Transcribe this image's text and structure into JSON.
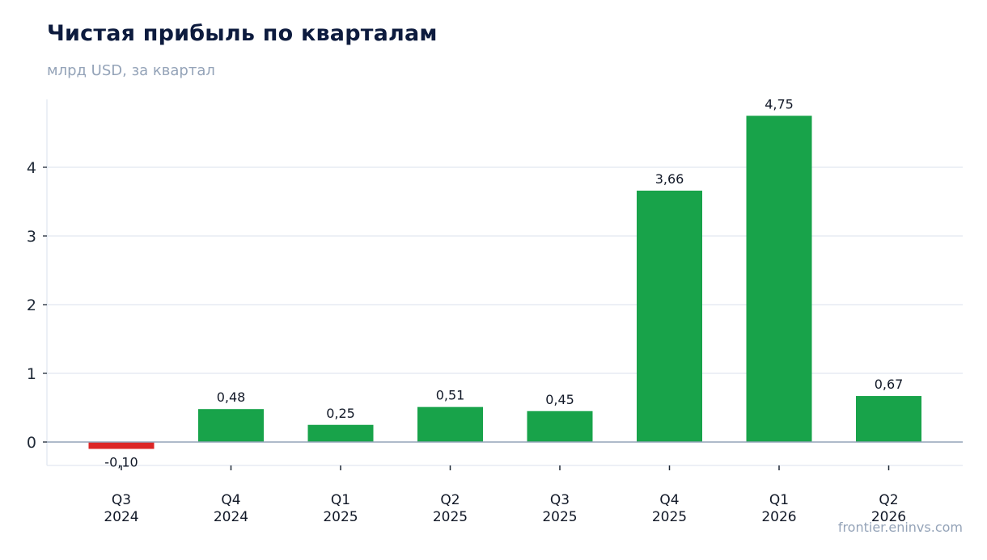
{
  "header": {
    "title": "Чистая прибыль по кварталам",
    "subtitle": "млрд USD, за квартал"
  },
  "footer": {
    "credit": "frontier.eninvs.com"
  },
  "colors": {
    "positive": "#18a34a",
    "negative": "#dc2626",
    "grid": "#e2e8f0",
    "zero_line": "#94a3b8",
    "axis": "#e2e8f0"
  },
  "chart_data": {
    "type": "bar",
    "title": "Чистая прибыль по кварталам",
    "subtitle": "млрд USD, за квартал",
    "xlabel": "",
    "ylabel": "",
    "categories": [
      [
        "Q3",
        "2024"
      ],
      [
        "Q4",
        "2024"
      ],
      [
        "Q1",
        "2025"
      ],
      [
        "Q2",
        "2025"
      ],
      [
        "Q3",
        "2025"
      ],
      [
        "Q4",
        "2025"
      ],
      [
        "Q1",
        "2026"
      ],
      [
        "Q2",
        "2026"
      ]
    ],
    "values": [
      -0.1,
      0.48,
      0.25,
      0.51,
      0.45,
      3.66,
      4.75,
      0.67
    ],
    "value_labels": [
      "-0,10",
      "0,48",
      "0,25",
      "0,51",
      "0,45",
      "3,66",
      "4,75",
      "0,67"
    ],
    "yticks": [
      0,
      1,
      2,
      3,
      4
    ],
    "ylim": [
      -0.35,
      4.98
    ],
    "grid": true,
    "legend": "none"
  }
}
